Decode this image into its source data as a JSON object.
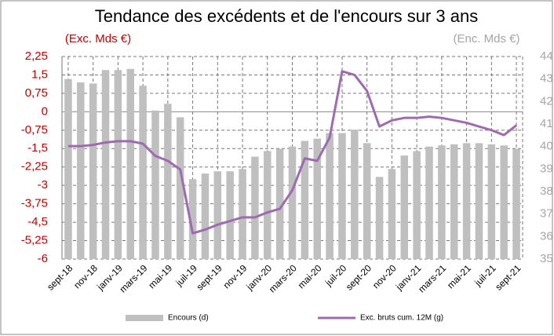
{
  "chart_data": {
    "type": "bar_line",
    "title": "Tendance des excédents et de l'encours sur 3 ans",
    "ylabel": "(Exc. Mds €)",
    "y2label": "(Enc. Mds €)",
    "categories": [
      "sept-18",
      null,
      "nov-18",
      null,
      "janv-19",
      null,
      "mars-19",
      null,
      "mai-19",
      null,
      "juil-19",
      null,
      "sept-19",
      null,
      "nov-19",
      null,
      "janv-20",
      null,
      "mars-20",
      null,
      "mai-20",
      null,
      "juil-20",
      null,
      "sept-20",
      null,
      "nov-20",
      null,
      "janv-21",
      null,
      "mars-21",
      null,
      "mai-21",
      null,
      "juil-21",
      null,
      "sept-21"
    ],
    "series": [
      {
        "name": "Encours (d)",
        "type": "bar",
        "axis": "y2",
        "color": "#bfbfbf",
        "values": [
          43.0,
          42.85,
          42.8,
          43.4,
          43.4,
          43.45,
          42.7,
          41.6,
          41.9,
          41.3,
          38.55,
          38.8,
          38.9,
          38.9,
          39.0,
          39.55,
          39.8,
          39.9,
          40.0,
          40.25,
          40.35,
          40.6,
          40.6,
          40.75,
          40.15,
          38.65,
          39.0,
          39.6,
          39.8,
          40.0,
          40.05,
          40.1,
          40.15,
          40.15,
          40.1,
          40.05,
          39.9
        ]
      },
      {
        "name": "Exc. bruts cum. 12M (g)",
        "type": "line",
        "color": "#9e6bb0",
        "values": [
          -1.4,
          -1.4,
          -1.35,
          -1.25,
          -1.2,
          -1.2,
          -1.3,
          -1.8,
          -2.0,
          -2.35,
          -4.95,
          -4.8,
          -4.6,
          -4.45,
          -4.3,
          -4.3,
          -4.1,
          -3.95,
          -3.2,
          -1.9,
          -2.0,
          -1.05,
          1.65,
          1.5,
          0.85,
          -0.6,
          -0.35,
          -0.25,
          -0.25,
          -0.2,
          -0.25,
          -0.35,
          -0.45,
          -0.6,
          -0.75,
          -0.95,
          -0.55
        ]
      }
    ],
    "ylim": [
      -6,
      2.25
    ],
    "yticks": [
      {
        "value": 2.25,
        "label": "2,25"
      },
      {
        "value": 1.5,
        "label": "1,5"
      },
      {
        "value": 0.75,
        "label": "0,75"
      },
      0,
      {
        "value": -0.75,
        "label": "-0,75"
      },
      {
        "value": -1.5,
        "label": "-1,5"
      },
      {
        "value": -2.25,
        "label": "-2,25"
      },
      -3,
      {
        "value": -3.75,
        "label": "-3,75"
      },
      {
        "value": -4.5,
        "label": "-4,5"
      },
      {
        "value": -5.25,
        "label": "-5,25"
      },
      -6
    ],
    "y2lim": [
      35,
      44
    ],
    "y2ticks": [
      44,
      43,
      42,
      41,
      40,
      39,
      38,
      37,
      36,
      35
    ],
    "grid": true,
    "legend": "bottom"
  }
}
